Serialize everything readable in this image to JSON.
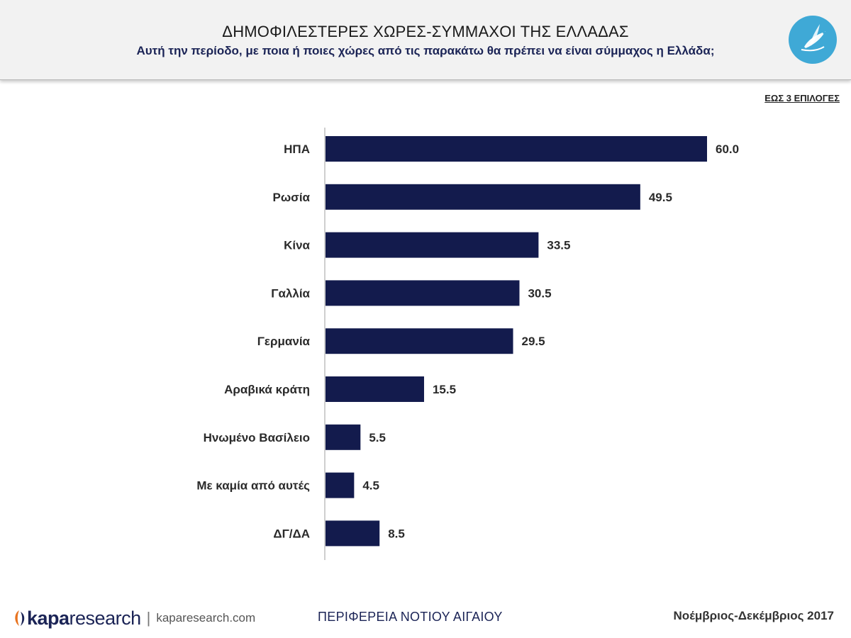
{
  "header": {
    "title": "ΔΗΜΟΦΙΛΕΣΤΕΡΕΣ ΧΩΡΕΣ-ΣΥΜΜΑΧΟΙ ΤΗΣ ΕΛΛΑΔΑΣ",
    "subtitle": "Αυτή την περίοδο, με ποια ή ποιες χώρες από τις παρακάτω θα πρέπει να είναι σύμμαχος η Ελλάδα;",
    "logo_icon": "dove-olive-branch-icon"
  },
  "choice_note": "ΕΩΣ 3 ΕΠΙΛΟΓΕΣ",
  "chart_data": {
    "type": "bar",
    "orientation": "horizontal",
    "categories": [
      "ΗΠΑ",
      "Ρωσία",
      "Κίνα",
      "Γαλλία",
      "Γερμανία",
      "Αραβικά κράτη",
      "Ηνωμένο Βασίλειο",
      "Με καμία από αυτές",
      "ΔΓ/ΔΑ"
    ],
    "values": [
      60.0,
      49.5,
      33.5,
      30.5,
      29.5,
      15.5,
      5.5,
      4.5,
      8.5
    ],
    "value_labels": [
      "60.0",
      "49.5",
      "33.5",
      "30.5",
      "29.5",
      "15.5",
      "5.5",
      "4.5",
      "8.5"
    ],
    "xlim": [
      0,
      60
    ],
    "grid": false,
    "bar_color": "#131b4d"
  },
  "footer": {
    "brand_kapa": "kapa",
    "brand_research": "research",
    "separator": "|",
    "url": "kaparesearch.com",
    "region": "ΠΕΡΙΦΕΡΕΙΑ ΝΟΤΙΟΥ ΑΙΓΑΙΟΥ",
    "period": "Νοέμβριος-Δεκέμβριος 2017"
  },
  "colors": {
    "header_bg": "#f2f2f2",
    "bar": "#131b4d",
    "logo_circle": "#3fa9d6",
    "subtitle": "#1b2456"
  }
}
